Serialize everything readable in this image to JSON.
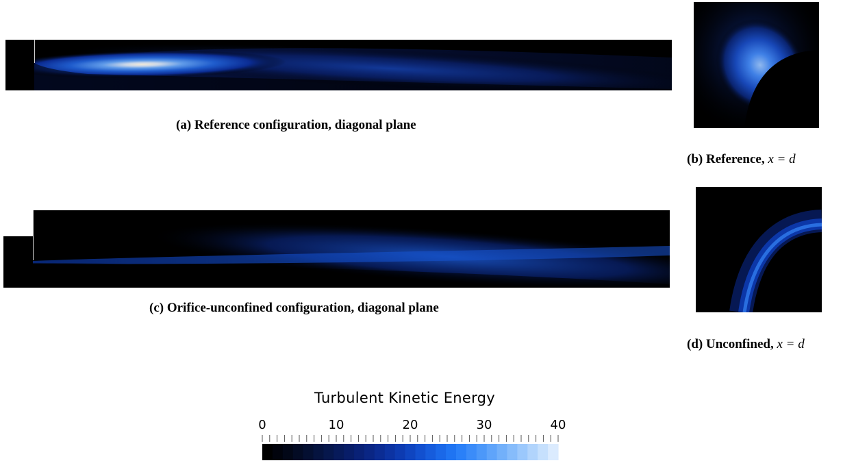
{
  "figures": {
    "a": {
      "label": "(a)",
      "caption": "Reference configuration, diagonal plane"
    },
    "b": {
      "label": "(b)",
      "caption": "Reference,",
      "math": "x = d"
    },
    "c": {
      "label": "(c)",
      "caption": "Orifice-unconfined configuration, diagonal plane"
    },
    "d": {
      "label": "(d)",
      "caption": "Unconfined,",
      "math": "x = d"
    }
  },
  "colorbar": {
    "title": "Turbulent Kinetic Energy",
    "ticks": [
      "0",
      "10",
      "20",
      "30",
      "40"
    ],
    "range": [
      0,
      40
    ],
    "palette": [
      "#000000",
      "#01030c",
      "#020717",
      "#030b24",
      "#040f31",
      "#05133f",
      "#06174c",
      "#071a5a",
      "#081d68",
      "#092176",
      "#0a2684",
      "#0b2c93",
      "#0c33a2",
      "#0d3bb1",
      "#0f45c0",
      "#1250cf",
      "#165cdc",
      "#1a68e8",
      "#1f74f2",
      "#2a80f8",
      "#3b8cf9",
      "#4c98f9",
      "#5fa4fa",
      "#72b0fa",
      "#86bcfb",
      "#9bc8fc",
      "#b1d4fc",
      "#c6e0fd",
      "#dbebfe"
    ]
  }
}
